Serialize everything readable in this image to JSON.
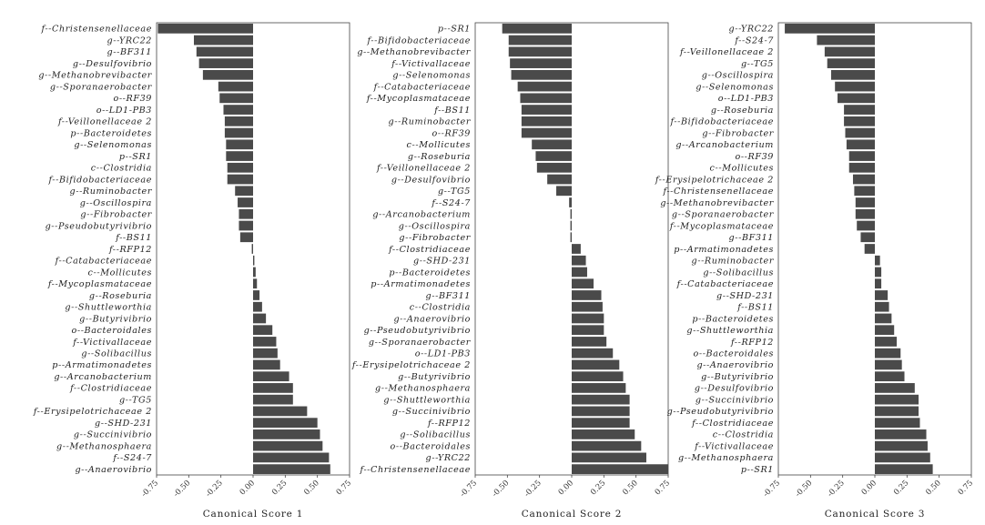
{
  "chart_data": [
    {
      "type": "bar",
      "orientation": "horizontal",
      "xlabel": "Canonical Score 1",
      "xlim": [
        -0.75,
        0.75
      ],
      "xticks": [
        "-0.75",
        "-0.50",
        "-0.25",
        "0.00",
        "0.25",
        "0.50",
        "0.75"
      ],
      "bar_color": "#4a4a4a",
      "categories": [
        "f--Christensenellaceae",
        "g--YRC22",
        "g--BF311",
        "g--Desulfovibrio",
        "g--Methanobrevibacter",
        "g--Sporanaerobacter",
        "o--RF39",
        "o--LD1-PB3",
        "f--Veillonellaceae 2",
        "p--Bacteroidetes",
        "g--Selenomonas",
        "p--SR1",
        "c--Clostridia",
        "f--Bifidobacteriaceae",
        "g--Ruminobacter",
        "g--Oscillospira",
        "g--Fibrobacter",
        "g--Pseudobutyrivibrio",
        "f--BS11",
        "f--RFP12",
        "f--Catabacteriaceae",
        "c--Mollicutes",
        "f--Mycoplasmataceae",
        "g--Roseburia",
        "g--Shuttleworthia",
        "g--Butyrivibrio",
        "o--Bacteroidales",
        "f--Victivallaceae",
        "g--Solibacillus",
        "p--Armatimonadetes",
        "g--Arcanobacterium",
        "f--Clostridiaceae",
        "g--TG5",
        "f--Erysipelotrichaceae 2",
        "g--SHD-231",
        "g--Succinivibrio",
        "g--Methanosphaera",
        "f--S24-7",
        "g--Anaerovibrio"
      ],
      "values": [
        -0.74,
        -0.46,
        -0.44,
        -0.42,
        -0.39,
        -0.27,
        -0.26,
        -0.23,
        -0.22,
        -0.22,
        -0.21,
        -0.21,
        -0.2,
        -0.2,
        -0.14,
        -0.12,
        -0.11,
        -0.11,
        -0.1,
        -0.01,
        0.01,
        0.02,
        0.03,
        0.05,
        0.07,
        0.1,
        0.15,
        0.18,
        0.19,
        0.21,
        0.28,
        0.31,
        0.31,
        0.42,
        0.5,
        0.52,
        0.54,
        0.59,
        0.6
      ]
    },
    {
      "type": "bar",
      "orientation": "horizontal",
      "xlabel": "Canonical Score 2",
      "xlim": [
        -0.75,
        0.75
      ],
      "xticks": [
        "-0.75",
        "-0.50",
        "-0.25",
        "0.00",
        "0.25",
        "0.50",
        "0.75"
      ],
      "bar_color": "#4a4a4a",
      "categories": [
        "p--SR1",
        "f--Bifidobacteriaceae",
        "g--Methanobrevibacter",
        "f--Victivallaceae",
        "g--Selenomonas",
        "f--Catabacteriaceae",
        "f--Mycoplasmataceae",
        "f--BS11",
        "g--Ruminobacter",
        "o--RF39",
        "c--Mollicutes",
        "g--Roseburia",
        "f--Veillonellaceae 2",
        "g--Desulfovibrio",
        "g--TG5",
        "f--S24-7",
        "g--Arcanobacterium",
        "g--Oscillospira",
        "g--Fibrobacter",
        "f--Clostridiaceae",
        "g--SHD-231",
        "p--Bacteroidetes",
        "p--Armatimonadetes",
        "g--BF311",
        "c--Clostridia",
        "g--Anaerovibrio",
        "g--Pseudobutyrivibrio",
        "g--Sporanaerobacter",
        "o--LD1-PB3",
        "f--Erysipelotrichaceae 2",
        "g--Butyrivibrio",
        "g--Methanosphaera",
        "g--Shuttleworthia",
        "g--Succinivibrio",
        "f--RFP12",
        "g--Solibacillus",
        "o--Bacteroidales",
        "g--YRC22",
        "f--Christensenellaceae"
      ],
      "values": [
        -0.54,
        -0.49,
        -0.49,
        -0.48,
        -0.47,
        -0.42,
        -0.4,
        -0.39,
        -0.39,
        -0.39,
        -0.31,
        -0.28,
        -0.27,
        -0.19,
        -0.12,
        -0.02,
        -0.01,
        -0.01,
        -0.01,
        0.07,
        0.11,
        0.12,
        0.17,
        0.23,
        0.24,
        0.25,
        0.25,
        0.27,
        0.32,
        0.37,
        0.4,
        0.42,
        0.45,
        0.45,
        0.45,
        0.49,
        0.54,
        0.58,
        0.75
      ]
    },
    {
      "type": "bar",
      "orientation": "horizontal",
      "xlabel": "Canonical Score 3",
      "xlim": [
        -0.75,
        0.75
      ],
      "xticks": [
        "-0.75",
        "-0.50",
        "-0.25",
        "0.00",
        "0.25",
        "0.50",
        "0.75"
      ],
      "bar_color": "#4a4a4a",
      "categories": [
        "g--YRC22",
        "f--S24-7",
        "f--Veillonellaceae 2",
        "g--TG5",
        "g--Oscillospira",
        "g--Selenomonas",
        "o--LD1-PB3",
        "g--Roseburia",
        "f--Bifidobacteriaceae",
        "g--Fibrobacter",
        "g--Arcanobacterium",
        "o--RF39",
        "c--Mollicutes",
        "f--Erysipelotrichaceae 2",
        "f--Christensenellaceae",
        "g--Methanobrevibacter",
        "g--Sporanaerobacter",
        "f--Mycoplasmataceae",
        "g--BF311",
        "p--Armatimonadetes",
        "g--Ruminobacter",
        "g--Solibacillus",
        "f--Catabacteriaceae",
        "g--SHD-231",
        "f--BS11",
        "p--Bacteroidetes",
        "g--Shuttleworthia",
        "f--RFP12",
        "o--Bacteroidales",
        "g--Anaerovibrio",
        "g--Butyrivibrio",
        "g--Desulfovibrio",
        "g--Succinivibrio",
        "g--Pseudobutyrivibrio",
        "f--Clostridiaceae",
        "c--Clostridia",
        "f--Victivallaceae",
        "g--Methanosphaera",
        "p--SR1"
      ],
      "values": [
        -0.7,
        -0.45,
        -0.39,
        -0.37,
        -0.34,
        -0.31,
        -0.29,
        -0.24,
        -0.24,
        -0.23,
        -0.22,
        -0.2,
        -0.2,
        -0.17,
        -0.16,
        -0.15,
        -0.15,
        -0.14,
        -0.11,
        -0.08,
        0.04,
        0.05,
        0.05,
        0.1,
        0.11,
        0.13,
        0.15,
        0.17,
        0.2,
        0.21,
        0.23,
        0.31,
        0.34,
        0.34,
        0.35,
        0.4,
        0.41,
        0.43,
        0.45
      ]
    }
  ]
}
